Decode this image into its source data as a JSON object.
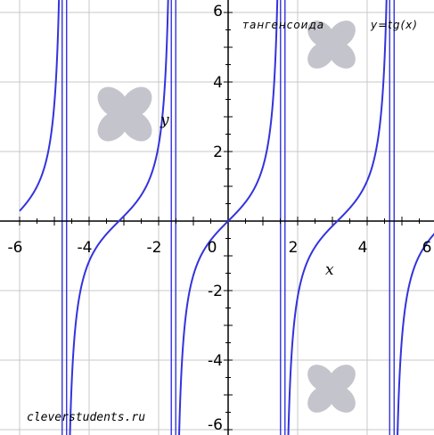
{
  "chart_data": {
    "type": "line",
    "title": "тангенсоида",
    "function_label": "y=tg(x)",
    "xlabel": "x",
    "ylabel": "y",
    "xlim": [
      -6,
      6.3
    ],
    "ylim": [
      -6,
      6
    ],
    "x_ticks": [
      -6,
      -4,
      -2,
      0,
      2,
      4,
      6
    ],
    "x_tick_labels": [
      "-6",
      "-4",
      "-2",
      "0",
      "2",
      "4",
      "6"
    ],
    "y_ticks": [
      -6,
      -4,
      -2,
      2,
      4,
      6
    ],
    "y_tick_labels": [
      "-6",
      "-4",
      "-2",
      "2",
      "4",
      "6"
    ],
    "grid": true,
    "series": [
      {
        "name": "y=tg(x)",
        "function": "tan(x)",
        "color": "#3333dd"
      }
    ],
    "asymptotes_x": [
      -4.712,
      -1.571,
      1.571,
      4.712
    ],
    "asymptote_color": "#3333dd",
    "watermark": "cleverstudents.ru"
  }
}
